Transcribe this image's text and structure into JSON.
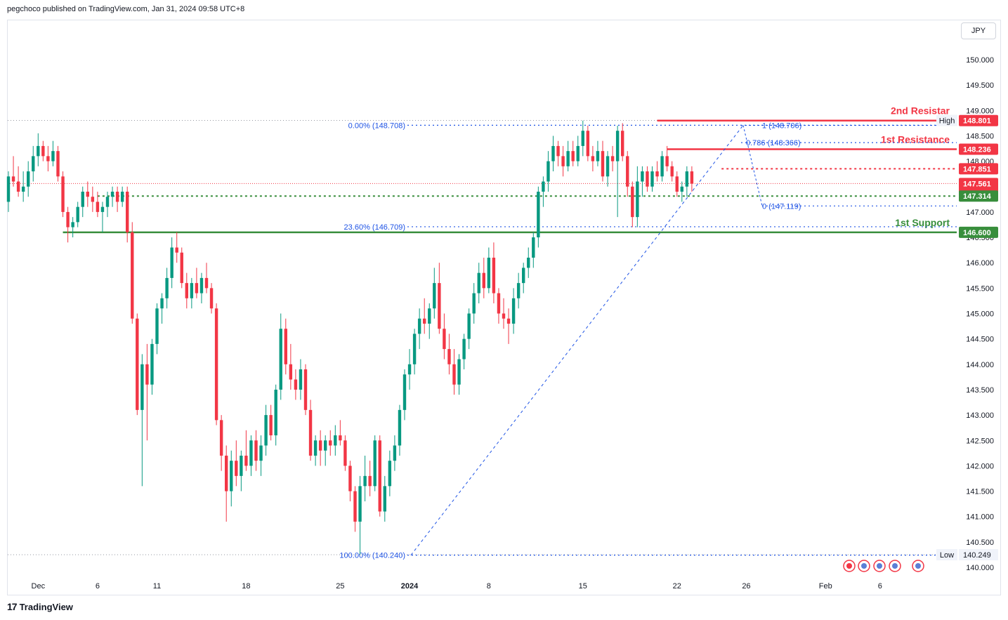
{
  "header": {
    "published": "pegchoco published on TradingView.com, Jan 31, 2024 09:58 UTC+8"
  },
  "currency": "JPY",
  "footer": {
    "brand": "TradingView",
    "logo": "17"
  },
  "colors": {
    "up": "#089981",
    "down": "#f23645",
    "resistance": "#f23645",
    "support": "#388e3c",
    "fib": "#1e53e5",
    "grid": "#f0f3fa"
  },
  "chart_data": {
    "type": "candlestick",
    "y_axis": {
      "min": 139.85,
      "max": 150.5,
      "ticks": [
        "140.000",
        "140.500",
        "141.000",
        "141.500",
        "142.000",
        "142.500",
        "143.000",
        "143.500",
        "144.000",
        "144.500",
        "145.000",
        "145.500",
        "146.000",
        "146.500",
        "147.000",
        "147.500",
        "148.000",
        "148.500",
        "149.000",
        "149.500",
        "150.000"
      ]
    },
    "x_axis": {
      "bars": 167,
      "labels": [
        {
          "bar": 6,
          "text": "Dec"
        },
        {
          "bar": 18,
          "text": "6"
        },
        {
          "bar": 30,
          "text": "11"
        },
        {
          "bar": 48,
          "text": "18"
        },
        {
          "bar": 67,
          "text": "25"
        },
        {
          "bar": 81,
          "text": "2024"
        },
        {
          "bar": 97,
          "text": "8"
        },
        {
          "bar": 116,
          "text": "15"
        },
        {
          "bar": 135,
          "text": "22"
        },
        {
          "bar": 149,
          "text": "26"
        },
        {
          "bar": 165,
          "text": "Feb"
        },
        {
          "bar": 176,
          "text": "6"
        }
      ]
    },
    "price_labels": [
      {
        "text": "High",
        "value": "148.803"
      },
      {
        "text": "",
        "value": "148.801",
        "color": "#f23645"
      },
      {
        "text": "",
        "value": "148.236",
        "color": "#f23645"
      },
      {
        "text": "",
        "value": "147.851",
        "color": "#f23645"
      },
      {
        "text": "",
        "value": "147.561",
        "sub": "01:33",
        "color": "#f23645"
      },
      {
        "text": "",
        "value": "147.314",
        "color": "#388e3c"
      },
      {
        "text": "",
        "value": "146.600",
        "color": "#388e3c"
      },
      {
        "text": "Low",
        "value": "140.249"
      }
    ],
    "levels": [
      {
        "name": "2nd Resistar",
        "value": 148.801,
        "color": "#f23645",
        "style": "solid",
        "from_bar": 131
      },
      {
        "name": "1st Resistance",
        "value": 148.236,
        "color": "#f23645",
        "style": "solid",
        "from_bar": 133
      },
      {
        "name": "",
        "value": 147.851,
        "color": "#f23645",
        "style": "dotted",
        "from_bar": 144
      },
      {
        "name": "",
        "value": 147.314,
        "color": "#388e3c",
        "style": "dotted",
        "from_bar": 18
      },
      {
        "name": "1st Support",
        "value": 146.6,
        "color": "#388e3c",
        "style": "solid",
        "from_bar": 11
      }
    ],
    "fibs": [
      {
        "text": "0.00% (148.708)",
        "value": 148.708
      },
      {
        "text": "23.60% (146.709)",
        "value": 146.709
      },
      {
        "text": "100.00% (140.240)",
        "value": 140.24
      },
      {
        "text": "1 (148.706)",
        "value": 148.706
      },
      {
        "text": "0.786 (148.366)",
        "value": 148.366
      },
      {
        "text": "0 (147.119)",
        "value": 147.119
      }
    ],
    "ohlc": [
      [
        147.2,
        147.8,
        147.0,
        147.7
      ],
      [
        147.7,
        148.1,
        147.5,
        147.6
      ],
      [
        147.6,
        147.9,
        147.3,
        147.4
      ],
      [
        147.4,
        147.8,
        147.2,
        147.5
      ],
      [
        147.5,
        148.0,
        147.3,
        147.8
      ],
      [
        147.8,
        148.3,
        147.6,
        148.1
      ],
      [
        148.1,
        148.55,
        147.9,
        148.3
      ],
      [
        148.3,
        148.4,
        148.0,
        148.1
      ],
      [
        148.1,
        148.3,
        147.8,
        148.0
      ],
      [
        148.0,
        148.4,
        147.9,
        148.2
      ],
      [
        148.2,
        148.3,
        147.6,
        147.7
      ],
      [
        147.7,
        147.8,
        146.9,
        147.0
      ],
      [
        147.0,
        147.1,
        146.4,
        146.7
      ],
      [
        146.7,
        146.9,
        146.5,
        146.8
      ],
      [
        146.8,
        147.2,
        146.7,
        147.1
      ],
      [
        147.1,
        147.5,
        146.9,
        147.4
      ],
      [
        147.4,
        147.6,
        147.1,
        147.3
      ],
      [
        147.3,
        147.5,
        147.0,
        147.2
      ],
      [
        147.2,
        147.4,
        146.9,
        147.0
      ],
      [
        147.0,
        147.2,
        146.6,
        147.1
      ],
      [
        147.1,
        147.4,
        146.9,
        147.3
      ],
      [
        147.3,
        147.5,
        147.1,
        147.4
      ],
      [
        147.4,
        147.5,
        147.0,
        147.2
      ],
      [
        147.2,
        147.5,
        147.1,
        147.4
      ],
      [
        147.4,
        147.5,
        146.4,
        146.6
      ],
      [
        146.6,
        146.8,
        144.8,
        144.9
      ],
      [
        144.9,
        145.0,
        143.0,
        143.1
      ],
      [
        143.1,
        144.2,
        141.6,
        144.0
      ],
      [
        144.0,
        144.4,
        142.5,
        143.6
      ],
      [
        143.6,
        144.5,
        143.4,
        144.4
      ],
      [
        144.4,
        145.2,
        144.2,
        145.1
      ],
      [
        145.1,
        145.4,
        144.8,
        145.3
      ],
      [
        145.3,
        145.9,
        145.1,
        145.7
      ],
      [
        145.7,
        146.5,
        145.5,
        146.3
      ],
      [
        146.3,
        146.6,
        146.0,
        146.2
      ],
      [
        146.2,
        146.3,
        145.5,
        145.6
      ],
      [
        145.6,
        145.8,
        145.1,
        145.3
      ],
      [
        145.3,
        145.7,
        145.1,
        145.6
      ],
      [
        145.6,
        145.9,
        145.3,
        145.4
      ],
      [
        145.4,
        145.8,
        145.2,
        145.7
      ],
      [
        145.7,
        146.0,
        145.4,
        145.5
      ],
      [
        145.5,
        145.6,
        145.0,
        145.1
      ],
      [
        145.1,
        145.2,
        142.8,
        142.9
      ],
      [
        142.9,
        143.0,
        141.9,
        142.2
      ],
      [
        142.2,
        142.4,
        140.9,
        141.5
      ],
      [
        141.5,
        142.3,
        141.2,
        142.1
      ],
      [
        142.1,
        142.5,
        141.6,
        141.8
      ],
      [
        141.8,
        142.3,
        141.5,
        142.2
      ],
      [
        142.2,
        142.7,
        141.9,
        142.0
      ],
      [
        142.0,
        142.6,
        141.8,
        142.5
      ],
      [
        142.5,
        142.7,
        141.9,
        142.1
      ],
      [
        142.1,
        142.6,
        141.8,
        142.4
      ],
      [
        142.4,
        143.2,
        142.2,
        143.0
      ],
      [
        143.0,
        143.2,
        142.5,
        142.6
      ],
      [
        142.6,
        143.6,
        142.4,
        143.5
      ],
      [
        143.5,
        145.0,
        143.3,
        144.7
      ],
      [
        144.7,
        144.9,
        143.8,
        144.0
      ],
      [
        144.0,
        144.4,
        143.5,
        143.7
      ],
      [
        143.7,
        143.9,
        143.3,
        143.5
      ],
      [
        143.5,
        144.1,
        143.3,
        143.9
      ],
      [
        143.9,
        144.0,
        143.0,
        143.1
      ],
      [
        143.1,
        143.3,
        142.1,
        142.2
      ],
      [
        142.2,
        142.6,
        142.0,
        142.5
      ],
      [
        142.5,
        142.7,
        142.0,
        142.3
      ],
      [
        142.3,
        142.6,
        142.0,
        142.5
      ],
      [
        142.5,
        142.7,
        142.2,
        142.4
      ],
      [
        142.4,
        142.8,
        142.2,
        142.6
      ],
      [
        142.6,
        142.9,
        142.4,
        142.5
      ],
      [
        142.5,
        142.6,
        141.9,
        142.0
      ],
      [
        142.0,
        142.1,
        141.3,
        141.5
      ],
      [
        141.5,
        141.6,
        140.7,
        140.9
      ],
      [
        140.9,
        141.8,
        140.25,
        141.6
      ],
      [
        141.6,
        142.2,
        141.3,
        141.8
      ],
      [
        141.8,
        142.1,
        141.4,
        141.6
      ],
      [
        141.6,
        142.6,
        141.5,
        142.5
      ],
      [
        142.5,
        142.6,
        141.0,
        141.1
      ],
      [
        141.1,
        141.8,
        140.9,
        141.6
      ],
      [
        141.6,
        142.3,
        141.4,
        142.1
      ],
      [
        142.1,
        142.6,
        141.9,
        142.4
      ],
      [
        142.4,
        143.2,
        142.2,
        143.1
      ],
      [
        143.1,
        143.9,
        142.9,
        143.8
      ],
      [
        143.8,
        144.3,
        143.5,
        144.0
      ],
      [
        144.0,
        144.7,
        143.8,
        144.6
      ],
      [
        144.6,
        145.1,
        144.3,
        144.9
      ],
      [
        144.9,
        145.3,
        144.6,
        144.8
      ],
      [
        144.8,
        145.2,
        144.5,
        145.1
      ],
      [
        145.1,
        145.9,
        144.9,
        145.6
      ],
      [
        145.6,
        146.0,
        144.6,
        144.7
      ],
      [
        144.7,
        145.0,
        144.1,
        144.3
      ],
      [
        144.3,
        144.6,
        143.8,
        144.0
      ],
      [
        144.0,
        144.3,
        143.4,
        143.6
      ],
      [
        143.6,
        144.2,
        143.4,
        144.1
      ],
      [
        144.1,
        144.6,
        143.9,
        144.5
      ],
      [
        144.5,
        145.1,
        144.3,
        145.0
      ],
      [
        145.0,
        145.6,
        144.8,
        145.4
      ],
      [
        145.4,
        146.0,
        145.2,
        145.8
      ],
      [
        145.8,
        146.1,
        145.3,
        145.5
      ],
      [
        145.5,
        146.3,
        145.4,
        146.1
      ],
      [
        146.1,
        146.4,
        145.2,
        145.4
      ],
      [
        145.4,
        145.5,
        144.8,
        145.0
      ],
      [
        145.0,
        145.3,
        144.7,
        144.9
      ],
      [
        144.9,
        145.1,
        144.4,
        144.8
      ],
      [
        144.8,
        145.5,
        144.6,
        145.3
      ],
      [
        145.3,
        145.8,
        145.1,
        145.6
      ],
      [
        145.6,
        146.0,
        145.4,
        145.9
      ],
      [
        145.9,
        146.3,
        145.7,
        146.1
      ],
      [
        146.1,
        146.6,
        145.9,
        146.5
      ],
      [
        146.5,
        147.5,
        146.3,
        147.4
      ],
      [
        147.4,
        147.7,
        147.1,
        147.6
      ],
      [
        147.6,
        148.2,
        147.4,
        148.0
      ],
      [
        148.0,
        148.5,
        147.8,
        148.3
      ],
      [
        148.3,
        148.4,
        147.9,
        148.1
      ],
      [
        148.1,
        148.3,
        147.7,
        147.9
      ],
      [
        147.9,
        148.4,
        147.8,
        148.2
      ],
      [
        148.2,
        148.4,
        147.9,
        148.0
      ],
      [
        148.0,
        148.5,
        147.9,
        148.3
      ],
      [
        148.3,
        148.8,
        148.1,
        148.6
      ],
      [
        148.6,
        148.7,
        148.0,
        148.1
      ],
      [
        148.1,
        148.3,
        147.8,
        148.0
      ],
      [
        148.0,
        148.4,
        147.9,
        148.2
      ],
      [
        148.2,
        148.4,
        147.6,
        147.7
      ],
      [
        147.7,
        148.2,
        147.5,
        148.1
      ],
      [
        148.1,
        148.3,
        147.8,
        148.0
      ],
      [
        148.0,
        148.7,
        146.9,
        148.6
      ],
      [
        148.6,
        148.75,
        148.0,
        148.1
      ],
      [
        148.1,
        148.2,
        147.3,
        147.5
      ],
      [
        147.5,
        147.6,
        146.7,
        146.9
      ],
      [
        146.9,
        147.9,
        146.7,
        147.6
      ],
      [
        147.6,
        147.9,
        147.3,
        147.8
      ],
      [
        147.8,
        147.9,
        147.4,
        147.5
      ],
      [
        147.5,
        147.9,
        147.4,
        147.8
      ],
      [
        147.8,
        148.0,
        147.6,
        147.7
      ],
      [
        147.7,
        148.2,
        147.6,
        148.1
      ],
      [
        148.1,
        148.3,
        147.8,
        147.9
      ],
      [
        147.9,
        148.0,
        147.6,
        147.7
      ],
      [
        147.7,
        147.8,
        147.3,
        147.4
      ],
      [
        147.4,
        147.6,
        147.2,
        147.5
      ],
      [
        147.5,
        147.9,
        147.3,
        147.8
      ],
      [
        147.8,
        147.9,
        147.4,
        147.56
      ]
    ]
  }
}
